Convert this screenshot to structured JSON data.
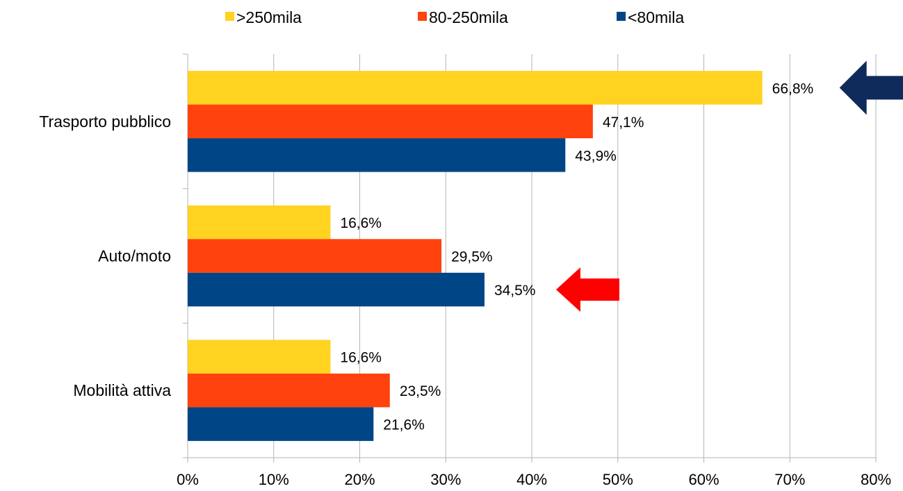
{
  "chart_data": {
    "type": "bar",
    "orientation": "horizontal",
    "categories": [
      "Trasporto pubblico",
      "Auto/moto",
      "Mobilità attiva"
    ],
    "series": [
      {
        "name": ">250mila",
        "values": [
          66.8,
          16.6,
          16.6
        ],
        "labels": [
          "66,8%",
          "16,6%",
          "16,6%"
        ],
        "color": "#FFD320"
      },
      {
        "name": "80-250mila",
        "values": [
          47.1,
          29.5,
          23.5
        ],
        "labels": [
          "47,1%",
          "29,5%",
          "23,5%"
        ],
        "color": "#FF420E"
      },
      {
        "name": "<80mila",
        "values": [
          43.9,
          34.5,
          21.6
        ],
        "labels": [
          "43,9%",
          "34,5%",
          "21,6%"
        ],
        "color": "#004586"
      }
    ],
    "xlim": [
      0,
      80
    ],
    "xticks": [
      0,
      10,
      20,
      30,
      40,
      50,
      60,
      70,
      80
    ],
    "xtick_labels": [
      "0%",
      "10%",
      "20%",
      "30%",
      "40%",
      "50%",
      "60%",
      "70%",
      "80%"
    ],
    "grid": "vertical",
    "legend_position": "top",
    "annotations": [
      {
        "type": "arrow",
        "points_to": "Trasporto pubblico / >250mila",
        "color": "#0F2B5B"
      },
      {
        "type": "arrow",
        "points_to": "Auto/moto / <80mila",
        "color": "#FF0000"
      }
    ]
  }
}
